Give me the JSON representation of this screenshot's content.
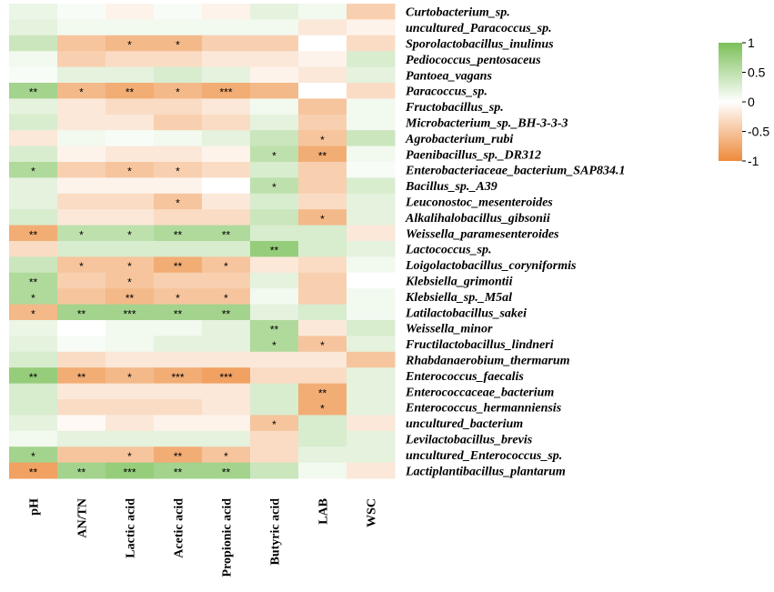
{
  "chart_data": {
    "type": "heatmap",
    "title": "",
    "columns": [
      "pH",
      "AN/TN",
      "Lactic acid",
      "Acetic acid",
      "Propionic acid",
      "Butyric acid",
      "LAB",
      "WSC"
    ],
    "rows": [
      "Curtobacterium_sp.",
      "uncultured_Paracoccus_sp.",
      "Sporolactobacillus_inulinus",
      "Pediococcus_pentosaceus",
      "Pantoea_vagans",
      "Paracoccus_sp.",
      "Fructobacillus_sp.",
      "Microbacterium_sp._BH-3-3-3",
      "Agrobacterium_rubi",
      "Paenibacillus_sp._DR312",
      "Enterobacteriaceae_bacterium_SAP834.1",
      "Bacillus_sp._A39",
      "Leuconostoc_mesenteroides",
      "Alkalihalobacillus_gibsonii",
      "Weissella_paramesenteroides",
      "Lactococcus_sp.",
      "Loigolactobacillus_coryniformis",
      "Klebsiella_grimontii",
      "Klebsiella_sp._M5al",
      "Latilactobacillus_sakei",
      "Weissella_minor",
      "Fructilactobacillus_lindneri",
      "Rhabdanaerobium_thermarum",
      "Enterococcus_faecalis",
      "Enterococcaceae_bacterium",
      "Enterococcus_hermanniensis",
      "uncultured_bacterium",
      "Levilactobacillus_brevis",
      "uncultured_Enterococcus_sp.",
      "Lactiplantibacillus_plantarum"
    ],
    "values": [
      [
        0.15,
        0.05,
        -0.1,
        0.05,
        -0.1,
        0.2,
        0.1,
        -0.4
      ],
      [
        0.2,
        0.1,
        0.1,
        0.1,
        0.1,
        0.1,
        -0.2,
        -0.1
      ],
      [
        0.4,
        -0.5,
        -0.6,
        -0.6,
        -0.4,
        -0.4,
        0.0,
        -0.3
      ],
      [
        0.1,
        -0.4,
        -0.3,
        -0.3,
        -0.2,
        -0.2,
        -0.1,
        0.3
      ],
      [
        0.05,
        0.2,
        0.2,
        0.3,
        0.2,
        -0.1,
        -0.2,
        0.2
      ],
      [
        0.7,
        -0.6,
        -0.7,
        -0.6,
        -0.7,
        -0.6,
        0.0,
        -0.3
      ],
      [
        0.2,
        -0.2,
        -0.3,
        -0.3,
        -0.2,
        0.1,
        -0.5,
        0.1
      ],
      [
        0.3,
        -0.2,
        -0.2,
        -0.4,
        -0.3,
        0.2,
        -0.4,
        0.1
      ],
      [
        -0.2,
        0.1,
        0.05,
        0.1,
        0.2,
        0.4,
        -0.5,
        0.4
      ],
      [
        0.3,
        -0.1,
        -0.2,
        -0.2,
        -0.1,
        0.5,
        -0.7,
        0.1
      ],
      [
        0.6,
        -0.4,
        -0.5,
        -0.4,
        -0.3,
        0.3,
        -0.4,
        0.05
      ],
      [
        0.2,
        -0.1,
        -0.1,
        -0.1,
        0.0,
        0.5,
        -0.4,
        0.3
      ],
      [
        0.2,
        -0.3,
        -0.3,
        -0.5,
        -0.2,
        0.3,
        -0.3,
        0.2
      ],
      [
        0.3,
        -0.2,
        -0.2,
        -0.3,
        -0.3,
        0.4,
        -0.6,
        0.2
      ],
      [
        -0.7,
        0.5,
        0.5,
        0.6,
        0.6,
        0.3,
        0.3,
        -0.2
      ],
      [
        -0.3,
        0.3,
        0.3,
        0.3,
        0.3,
        0.8,
        0.3,
        0.2
      ],
      [
        0.4,
        -0.5,
        -0.5,
        -0.7,
        -0.5,
        -0.2,
        -0.3,
        0.1
      ],
      [
        0.6,
        -0.4,
        -0.5,
        -0.4,
        -0.4,
        0.2,
        -0.4,
        0.0
      ],
      [
        0.6,
        -0.5,
        -0.6,
        -0.5,
        -0.5,
        0.1,
        -0.4,
        0.1
      ],
      [
        -0.6,
        0.7,
        0.7,
        0.7,
        0.7,
        0.2,
        0.3,
        0.1
      ],
      [
        0.15,
        0.0,
        0.1,
        0.1,
        0.2,
        0.6,
        -0.2,
        0.3
      ],
      [
        0.2,
        0.05,
        0.1,
        0.2,
        0.2,
        0.6,
        -0.5,
        0.2
      ],
      [
        0.3,
        -0.3,
        -0.2,
        -0.2,
        -0.2,
        -0.2,
        -0.2,
        -0.5
      ],
      [
        0.8,
        -0.7,
        -0.6,
        -0.7,
        -0.8,
        -0.3,
        -0.3,
        0.2
      ],
      [
        0.3,
        -0.2,
        -0.2,
        -0.2,
        -0.2,
        0.3,
        -0.7,
        0.2
      ],
      [
        0.3,
        -0.3,
        -0.3,
        -0.3,
        -0.2,
        0.3,
        -0.7,
        0.2
      ],
      [
        0.2,
        -0.05,
        -0.2,
        -0.1,
        -0.1,
        -0.5,
        0.3,
        -0.2
      ],
      [
        0.1,
        0.2,
        0.2,
        0.2,
        0.2,
        -0.3,
        0.3,
        0.2
      ],
      [
        0.7,
        -0.5,
        -0.5,
        -0.7,
        -0.5,
        -0.3,
        0.2,
        0.2
      ],
      [
        -0.8,
        0.7,
        0.8,
        0.7,
        0.7,
        0.4,
        0.1,
        -0.2
      ]
    ],
    "significance": [
      [
        "",
        "",
        "",
        "",
        "",
        "",
        "",
        ""
      ],
      [
        "",
        "",
        "",
        "",
        "",
        "",
        "",
        ""
      ],
      [
        "",
        "",
        "*",
        "*",
        "",
        "",
        "",
        ""
      ],
      [
        "",
        "",
        "",
        "",
        "",
        "",
        "",
        ""
      ],
      [
        "",
        "",
        "",
        "",
        "",
        "",
        "",
        ""
      ],
      [
        "**",
        "*",
        "**",
        "*",
        "***",
        "",
        "",
        ""
      ],
      [
        "",
        "",
        "",
        "",
        "",
        "",
        "",
        ""
      ],
      [
        "",
        "",
        "",
        "",
        "",
        "",
        "",
        ""
      ],
      [
        "",
        "",
        "",
        "",
        "",
        "",
        "*",
        ""
      ],
      [
        "",
        "",
        "",
        "",
        "",
        "*",
        "**",
        ""
      ],
      [
        "*",
        "",
        "*",
        "*",
        "",
        "",
        "",
        ""
      ],
      [
        "",
        "",
        "",
        "",
        "",
        "*",
        "",
        ""
      ],
      [
        "",
        "",
        "",
        "*",
        "",
        "",
        "",
        ""
      ],
      [
        "",
        "",
        "",
        "",
        "",
        "",
        "*",
        ""
      ],
      [
        "**",
        "*",
        "*",
        "**",
        "**",
        "",
        "",
        ""
      ],
      [
        "",
        "",
        "",
        "",
        "",
        "**",
        "",
        ""
      ],
      [
        "",
        "*",
        "*",
        "**",
        "*",
        "",
        "",
        ""
      ],
      [
        "**",
        "",
        "*",
        "",
        "",
        "",
        "",
        ""
      ],
      [
        "*",
        "",
        "**",
        "*",
        "*",
        "",
        "",
        ""
      ],
      [
        "*",
        "**",
        "***",
        "**",
        "**",
        "",
        "",
        ""
      ],
      [
        "",
        "",
        "",
        "",
        "",
        "**",
        "",
        ""
      ],
      [
        "",
        "",
        "",
        "",
        "",
        "*",
        "*",
        ""
      ],
      [
        "",
        "",
        "",
        "",
        "",
        "",
        "",
        ""
      ],
      [
        "**",
        "**",
        "*",
        "***",
        "***",
        "",
        "",
        ""
      ],
      [
        "",
        "",
        "",
        "",
        "",
        "",
        "**",
        ""
      ],
      [
        "",
        "",
        "",
        "",
        "",
        "",
        "*",
        ""
      ],
      [
        "",
        "",
        "",
        "",
        "",
        "*",
        "",
        ""
      ],
      [
        "",
        "",
        "",
        "",
        "",
        "",
        "",
        ""
      ],
      [
        "*",
        "",
        "*",
        "**",
        "*",
        "",
        "",
        ""
      ],
      [
        "**",
        "**",
        "***",
        "**",
        "**",
        "",
        "",
        ""
      ]
    ],
    "colorscale": {
      "min": -1,
      "max": 1,
      "low_color": "#ed8a3a",
      "mid_color": "#ffffff",
      "high_color": "#7cc05a",
      "ticks": [
        "1",
        "0.5",
        "0",
        "-0.5",
        "-1"
      ]
    }
  }
}
